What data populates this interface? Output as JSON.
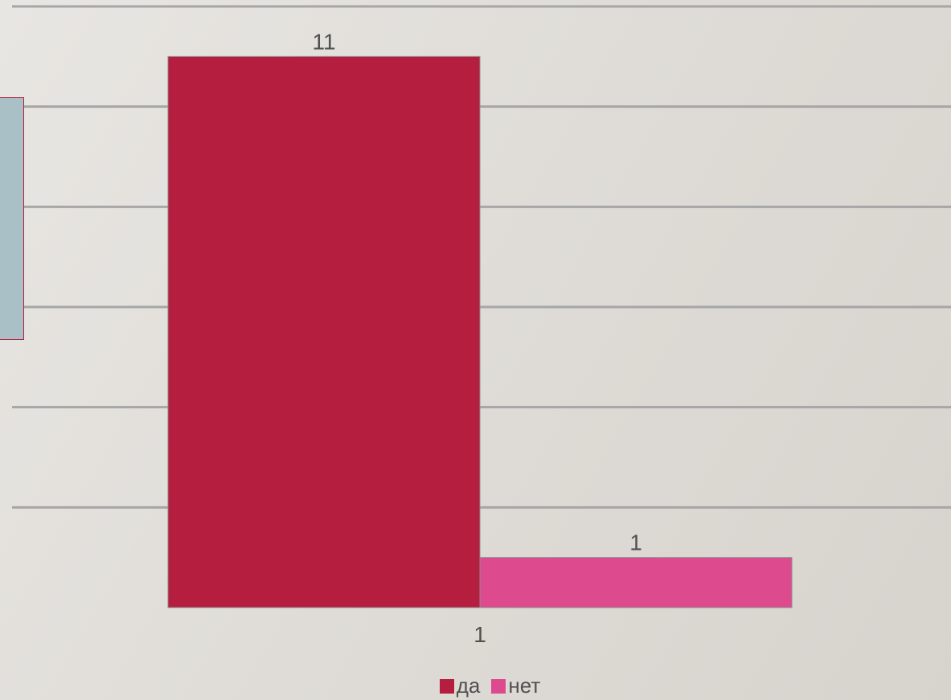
{
  "chart_data": {
    "type": "bar",
    "categories": [
      "1"
    ],
    "series": [
      {
        "name": "да",
        "values": [
          11
        ],
        "color": "#b51e3f"
      },
      {
        "name": "нет",
        "values": [
          1
        ],
        "color": "#dd4b8e"
      }
    ],
    "data_labels": [
      "11",
      "1"
    ],
    "ylim": [
      0,
      12
    ],
    "grid": true,
    "legend": "bottom",
    "title": "",
    "xlabel": "",
    "ylabel": ""
  },
  "colors": {
    "gridline": "#a6a6a6",
    "side_panel": "#a9c0c7",
    "text": "#505050"
  }
}
